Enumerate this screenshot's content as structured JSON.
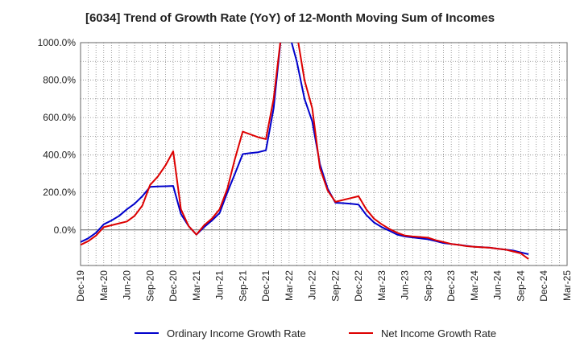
{
  "chart_data": {
    "type": "line",
    "title": "[6034]  Trend of Growth Rate (YoY) of 12-Month Moving Sum of Incomes",
    "xlabel": "",
    "ylabel": "",
    "x_tick_labels": [
      "Dec-19",
      "Mar-20",
      "Jun-20",
      "Sep-20",
      "Dec-20",
      "Mar-21",
      "Jun-21",
      "Sep-21",
      "Dec-21",
      "Mar-22",
      "Jun-22",
      "Sep-22",
      "Dec-22",
      "Mar-23",
      "Jun-23",
      "Sep-23",
      "Dec-23",
      "Mar-24",
      "Jun-24",
      "Sep-24",
      "Dec-24",
      "Mar-25"
    ],
    "y_ticks": [
      0,
      200,
      400,
      600,
      800,
      1000
    ],
    "y_tick_labels": [
      "0.0%",
      "200.0%",
      "400.0%",
      "600.0%",
      "800.0%",
      "1000.0%"
    ],
    "ylim": [
      -190,
      1000
    ],
    "grid": true,
    "legend_position": "bottom",
    "series": [
      {
        "name": "Ordinary Income Growth Rate",
        "color": "#0000cc",
        "values": [
          -65,
          -45,
          -15,
          30,
          50,
          75,
          110,
          140,
          180,
          230,
          232,
          233,
          235,
          85,
          20,
          -25,
          15,
          50,
          90,
          200,
          300,
          405,
          410,
          415,
          425,
          650,
          1050,
          1050,
          900,
          700,
          580,
          350,
          220,
          145,
          143,
          140,
          135,
          80,
          40,
          15,
          -5,
          -25,
          -35,
          -40,
          -45,
          -50,
          -60,
          -70,
          -75,
          -80,
          -85,
          -90,
          -92,
          -95,
          -100,
          -105,
          -110,
          -120,
          -130
        ]
      },
      {
        "name": "Net Income Growth Rate",
        "color": "#dd0000",
        "values": [
          -80,
          -60,
          -30,
          15,
          25,
          35,
          45,
          75,
          130,
          240,
          285,
          345,
          420,
          110,
          20,
          -25,
          25,
          60,
          110,
          220,
          380,
          525,
          510,
          495,
          485,
          700,
          1050,
          1050,
          1050,
          800,
          650,
          330,
          210,
          150,
          160,
          170,
          180,
          110,
          60,
          30,
          5,
          -15,
          -30,
          -35,
          -38,
          -42,
          -55,
          -65,
          -75,
          -80,
          -87,
          -90,
          -93,
          -95,
          -100,
          -105,
          -115,
          -125,
          -155
        ]
      }
    ]
  }
}
